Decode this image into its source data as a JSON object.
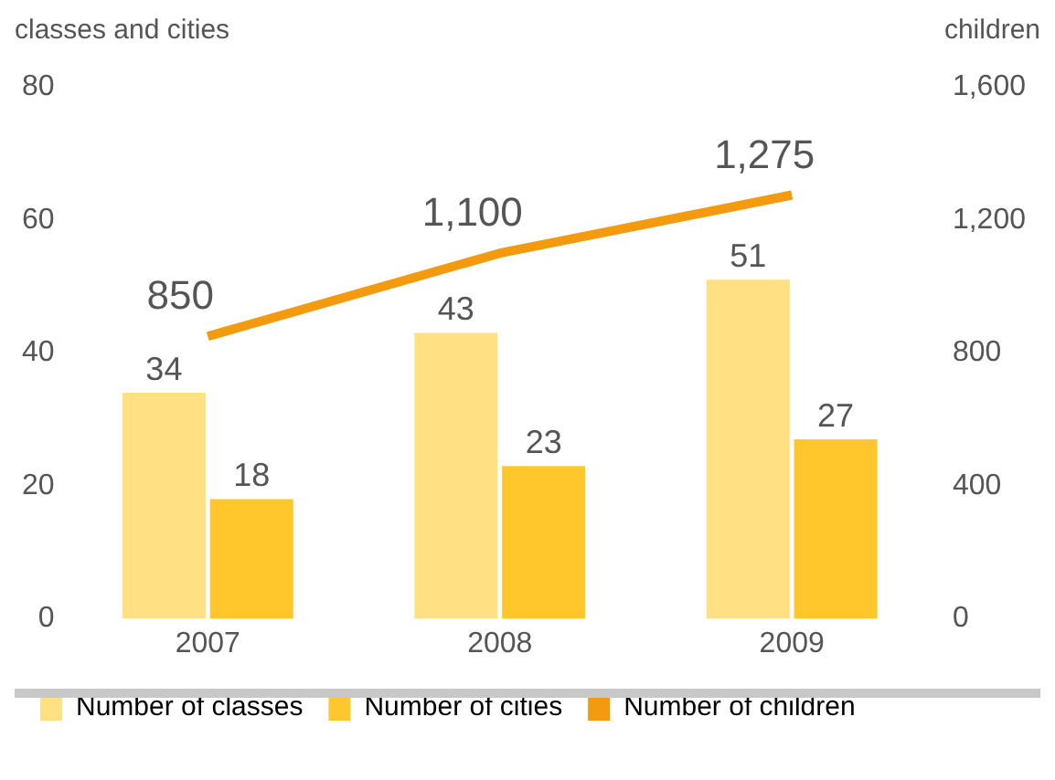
{
  "chart_data": {
    "type": "bar",
    "ylabel": "classes and cities",
    "y2label": "children",
    "categories": [
      "2007",
      "2008",
      "2009"
    ],
    "series": [
      {
        "name": "Number of classes",
        "color": "#ffe083",
        "values": [
          34,
          43,
          51
        ],
        "value_labels": [
          "34",
          "43",
          "51"
        ]
      },
      {
        "name": "Number of cities",
        "color": "#ffc72c",
        "values": [
          18,
          23,
          27
        ],
        "value_labels": [
          "18",
          "23",
          "27"
        ]
      },
      {
        "name": "Number of children",
        "type": "line",
        "axis": "y2",
        "color": "#f39a0e",
        "values": [
          850,
          1100,
          1275
        ],
        "value_labels": [
          "850",
          "1,100",
          "1,275"
        ]
      }
    ],
    "ylim": [
      0,
      80
    ],
    "yticks": [
      0,
      20,
      40,
      60,
      80
    ],
    "y2lim": [
      0,
      1600
    ],
    "y2ticks": [
      0,
      400,
      800,
      {
        "value": 1200,
        "label": "1,200"
      },
      {
        "value": 1600,
        "label": "1,600"
      }
    ],
    "grid": false,
    "legend": "bottom",
    "marker": "none",
    "line_style": "solid"
  }
}
